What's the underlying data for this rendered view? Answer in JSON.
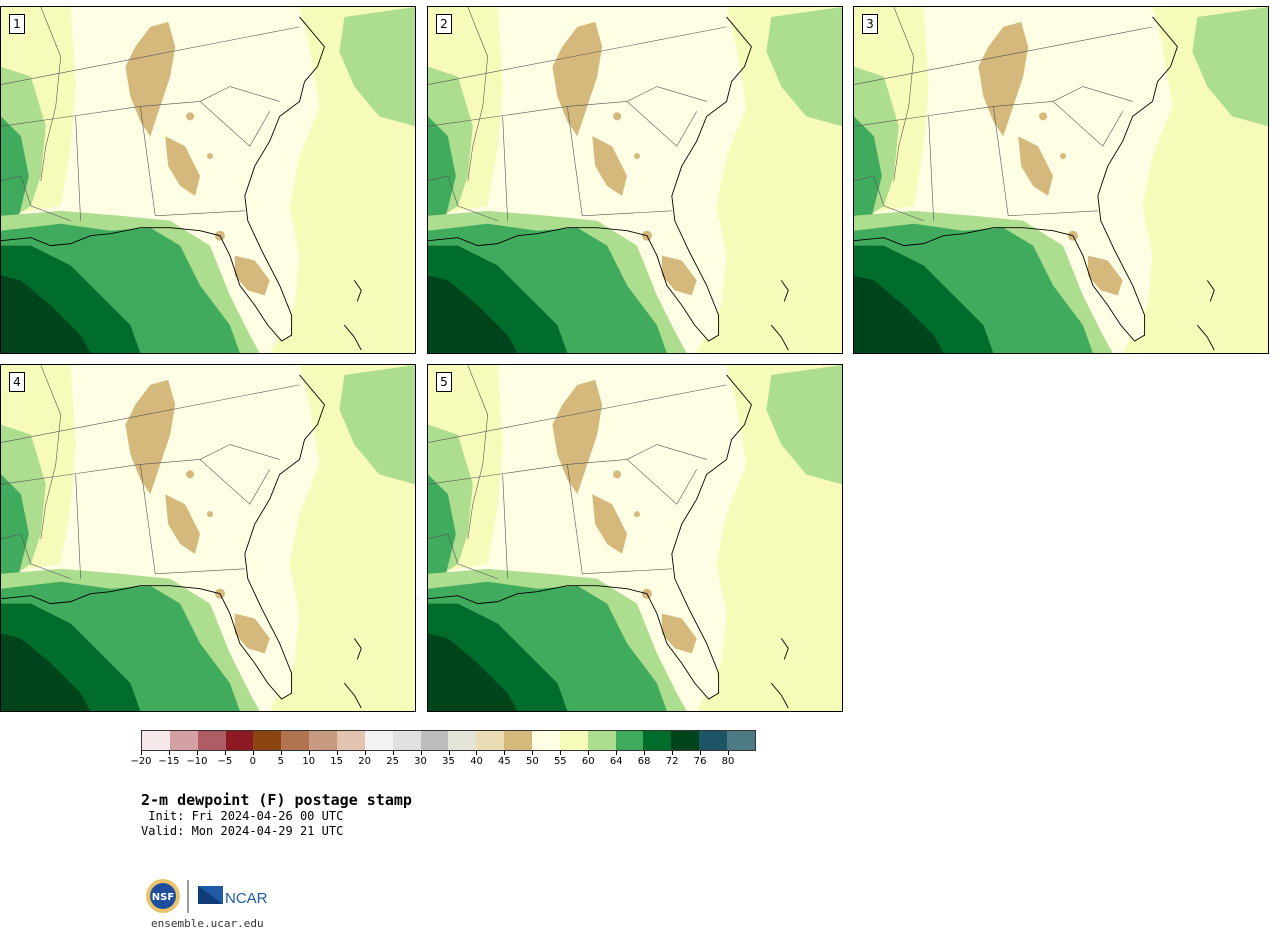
{
  "panels": [
    {
      "number": "1"
    },
    {
      "number": "2"
    },
    {
      "number": "3"
    },
    {
      "number": "4"
    },
    {
      "number": "5"
    }
  ],
  "colorbar": {
    "colors": [
      "#f4e8e8",
      "#d4a0a4",
      "#b05c64",
      "#8b1a24",
      "#8c4510",
      "#b07450",
      "#c89a80",
      "#e2c4b0",
      "#f2f2f2",
      "#e0e0e0",
      "#bdbdbd",
      "#e4e4d8",
      "#eadcb4",
      "#d4b87c",
      "#fefee4",
      "#f7fbb9",
      "#addd8e",
      "#41ab5d",
      "#006d2c",
      "#00441b",
      "#1d5566",
      "#4d7b85"
    ],
    "tick_labels": [
      "−20",
      "−15",
      "−10",
      "−5",
      "0",
      "5",
      "10",
      "15",
      "20",
      "25",
      "30",
      "35",
      "40",
      "45",
      "50",
      "55",
      "60",
      "64",
      "68",
      "72",
      "76",
      "80"
    ]
  },
  "title": "2-m dewpoint (F) postage stamp",
  "init": " Init: Fri 2024-04-26 00 UTC",
  "valid": "Valid: Mon 2024-04-29 21 UTC",
  "footer": {
    "url": "ensemble.ucar.edu",
    "logo_nsf_text": "NSF",
    "logo_ncar_text": "NCAR"
  },
  "colors": {
    "dry_tan": "#d4b87c",
    "pale_yellow": "#fefee4",
    "light_yellow": "#f7fbb9",
    "light_green": "#addd8e",
    "mid_green": "#41ab5d",
    "dark_green": "#006d2c",
    "darkest_green": "#00441b"
  }
}
